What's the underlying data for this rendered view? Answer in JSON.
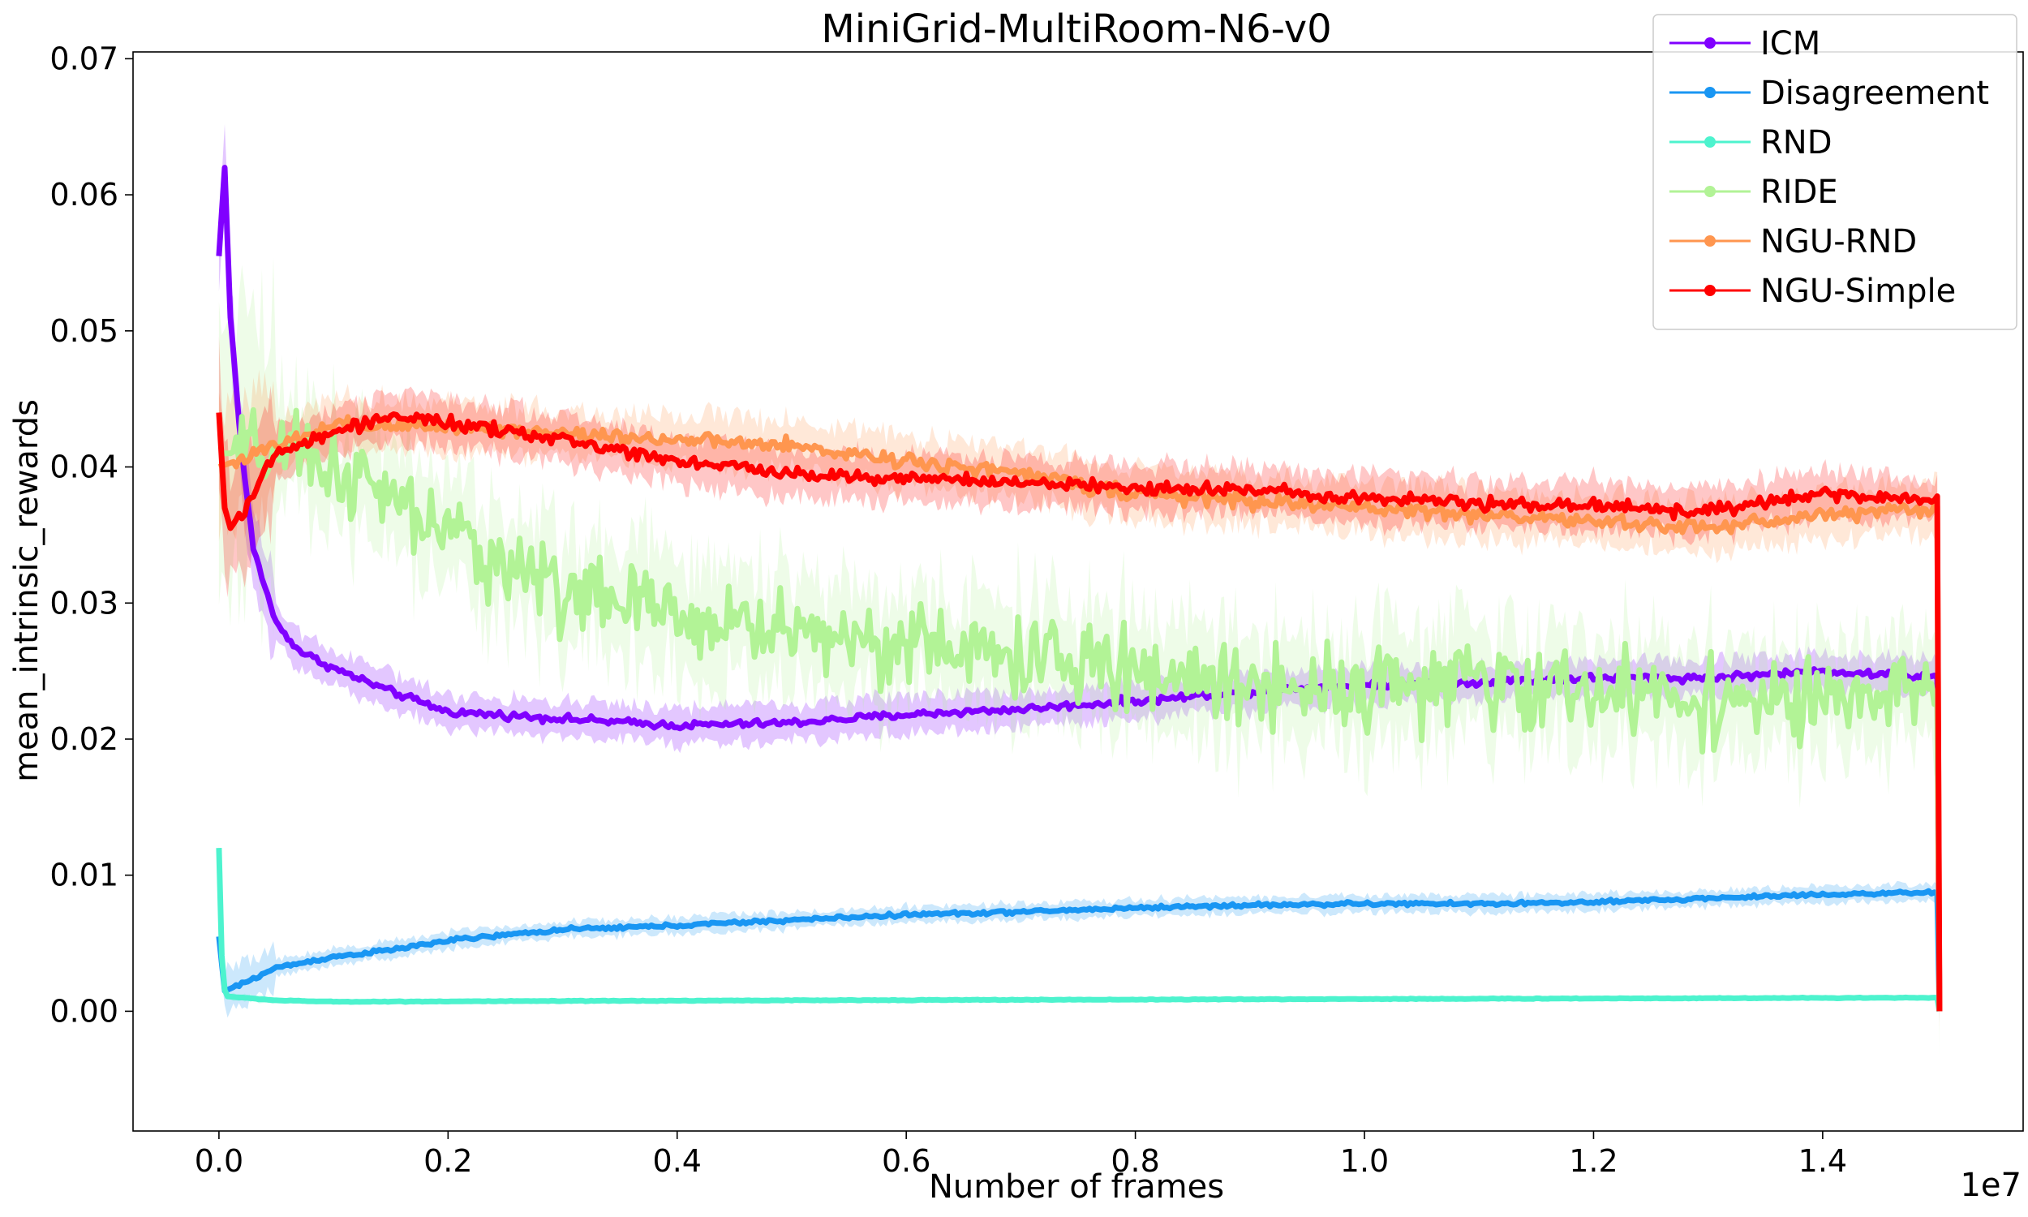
{
  "chart_data": {
    "type": "line",
    "title": "MiniGrid-MultiRoom-N6-v0",
    "xlabel": "Number of frames",
    "ylabel": "mean_intrinsic_rewards",
    "x_offset_label": "1e7",
    "xlim": [
      -0.075,
      1.575
    ],
    "ylim": [
      -0.0088,
      0.0705
    ],
    "x_ticks": [
      0.0,
      0.2,
      0.4,
      0.6,
      0.8,
      1.0,
      1.2,
      1.4
    ],
    "x_tick_labels": [
      "0.0",
      "0.2",
      "0.4",
      "0.6",
      "0.8",
      "1.0",
      "1.2",
      "1.4"
    ],
    "y_ticks": [
      0.0,
      0.01,
      0.02,
      0.03,
      0.04,
      0.05,
      0.06,
      0.07
    ],
    "y_tick_labels": [
      "0.00",
      "0.01",
      "0.02",
      "0.03",
      "0.04",
      "0.05",
      "0.06",
      "0.07"
    ],
    "grid": false,
    "legend_position": "top-right",
    "series": [
      {
        "name": "ICM",
        "color": "#8000ff",
        "x": [
          0.0,
          0.005,
          0.01,
          0.02,
          0.03,
          0.05,
          0.07,
          0.1,
          0.15,
          0.2,
          0.3,
          0.4,
          0.5,
          0.6,
          0.7,
          0.8,
          0.9,
          1.0,
          1.1,
          1.2,
          1.3,
          1.4,
          1.5
        ],
        "y": [
          0.0555,
          0.062,
          0.051,
          0.041,
          0.034,
          0.0285,
          0.0265,
          0.0252,
          0.0235,
          0.022,
          0.0215,
          0.021,
          0.0212,
          0.0218,
          0.0222,
          0.0228,
          0.0235,
          0.024,
          0.0242,
          0.0245,
          0.0245,
          0.025,
          0.0245
        ],
        "band": 0.0013,
        "noise": 0.0004
      },
      {
        "name": "Disagreement",
        "color": "#1996f3",
        "x": [
          0.0,
          0.005,
          0.02,
          0.05,
          0.1,
          0.15,
          0.2,
          0.3,
          0.4,
          0.5,
          0.6,
          0.7,
          0.8,
          0.9,
          1.0,
          1.1,
          1.2,
          1.3,
          1.4,
          1.5
        ],
        "y": [
          0.0055,
          0.0015,
          0.002,
          0.0032,
          0.004,
          0.0045,
          0.0052,
          0.006,
          0.0063,
          0.0067,
          0.0071,
          0.0073,
          0.0076,
          0.0078,
          0.0079,
          0.0079,
          0.008,
          0.0083,
          0.0086,
          0.0087
        ],
        "band": 0.0006,
        "noise": 0.0002
      },
      {
        "name": "RND",
        "color": "#4df3ce",
        "x": [
          0.0,
          0.003,
          0.006,
          0.02,
          0.05,
          0.1,
          0.5,
          1.0,
          1.5
        ],
        "y": [
          0.012,
          0.0025,
          0.0011,
          0.001,
          0.0008,
          0.0007,
          0.0008,
          0.0009,
          0.001
        ],
        "band": 0.0001,
        "noise": 4e-05
      },
      {
        "name": "RIDE",
        "color": "#b2f396",
        "x": [
          0.0,
          0.05,
          0.1,
          0.2,
          0.3,
          0.4,
          0.5,
          0.6,
          0.7,
          0.8,
          0.9,
          1.0,
          1.1,
          1.2,
          1.3,
          1.4,
          1.5
        ],
        "y": [
          0.041,
          0.041,
          0.04,
          0.035,
          0.031,
          0.029,
          0.028,
          0.027,
          0.026,
          0.025,
          0.024,
          0.024,
          0.024,
          0.0235,
          0.023,
          0.0225,
          0.0235
        ],
        "band": 0.004,
        "noise": 0.0045
      },
      {
        "name": "NGU-RND",
        "color": "#ff964f",
        "x": [
          0.0,
          0.05,
          0.1,
          0.2,
          0.3,
          0.4,
          0.5,
          0.6,
          0.7,
          0.8,
          0.9,
          1.0,
          1.1,
          1.2,
          1.3,
          1.4,
          1.5
        ],
        "y": [
          0.04,
          0.0415,
          0.043,
          0.043,
          0.0425,
          0.042,
          0.0415,
          0.0405,
          0.0395,
          0.038,
          0.0375,
          0.037,
          0.0365,
          0.036,
          0.0355,
          0.0365,
          0.037
        ],
        "band": 0.0018,
        "noise": 0.0008
      },
      {
        "name": "NGU-Simple",
        "color": "#ff0000",
        "x": [
          0.0,
          0.005,
          0.01,
          0.03,
          0.05,
          0.1,
          0.15,
          0.2,
          0.3,
          0.4,
          0.5,
          0.6,
          0.7,
          0.8,
          0.9,
          1.0,
          1.1,
          1.2,
          1.3,
          1.4,
          1.5
        ],
        "y": [
          0.044,
          0.037,
          0.0355,
          0.038,
          0.041,
          0.0425,
          0.0438,
          0.0432,
          0.042,
          0.0405,
          0.0395,
          0.0392,
          0.0388,
          0.0385,
          0.0383,
          0.0378,
          0.0373,
          0.0372,
          0.0367,
          0.038,
          0.0375
        ],
        "band": 0.0017,
        "noise": 0.0007
      }
    ]
  }
}
